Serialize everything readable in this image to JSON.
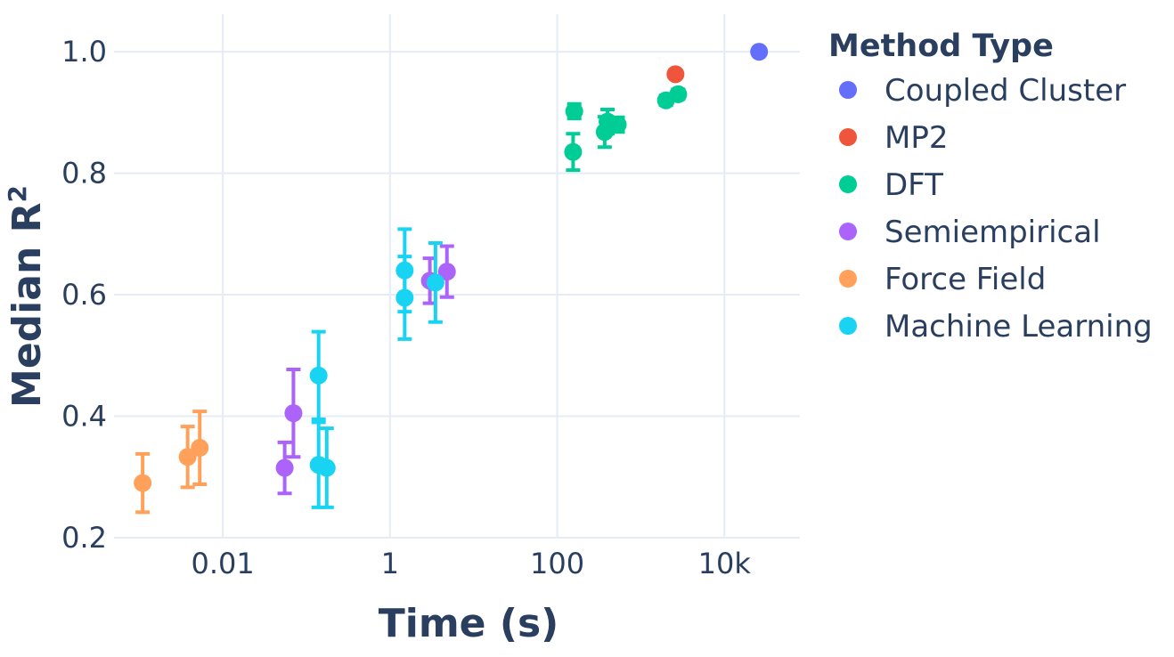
{
  "chart_data": {
    "type": "scatter",
    "xlabel": "Time (s)",
    "ylabel_main": "Median R",
    "ylabel_sup": "2",
    "x_scale": "log",
    "xlim": [
      0.0005,
      80000
    ],
    "ylim": [
      0.2,
      1.05
    ],
    "x_ticks": [
      {
        "value": 0.01,
        "label": "0.01"
      },
      {
        "value": 1,
        "label": "1"
      },
      {
        "value": 100,
        "label": "100"
      },
      {
        "value": 10000,
        "label": "10k"
      }
    ],
    "y_ticks": [
      {
        "value": 0.2,
        "label": "0.2"
      },
      {
        "value": 0.4,
        "label": "0.4"
      },
      {
        "value": 0.6,
        "label": "0.6"
      },
      {
        "value": 0.8,
        "label": "0.8"
      },
      {
        "value": 1.0,
        "label": "1.0"
      }
    ],
    "grid": true,
    "legend_title": "Method Type",
    "legend_position": "right",
    "series": [
      {
        "name": "Coupled Cluster",
        "color": "#636efa",
        "points": [
          {
            "x": 26000,
            "y": 1.0
          }
        ]
      },
      {
        "name": "MP2",
        "color": "#ef553b",
        "points": [
          {
            "x": 2600,
            "y": 0.963
          }
        ]
      },
      {
        "name": "DFT",
        "color": "#00cc96",
        "points": [
          {
            "x": 160,
            "y": 0.902,
            "err": 0.012
          },
          {
            "x": 155,
            "y": 0.835,
            "err": 0.03
          },
          {
            "x": 370,
            "y": 0.868,
            "err": 0.025
          },
          {
            "x": 400,
            "y": 0.885,
            "err": 0.02
          },
          {
            "x": 530,
            "y": 0.88,
            "err": 0.012
          },
          {
            "x": 2000,
            "y": 0.92,
            "err": 0.008
          },
          {
            "x": 2800,
            "y": 0.93,
            "err": 0.008
          }
        ]
      },
      {
        "name": "Semiempirical",
        "color": "#ab63fa",
        "points": [
          {
            "x": 0.055,
            "y": 0.315,
            "err": 0.042
          },
          {
            "x": 0.07,
            "y": 0.405,
            "err": 0.072
          },
          {
            "x": 3.0,
            "y": 0.623,
            "err": 0.037
          },
          {
            "x": 4.8,
            "y": 0.638,
            "err": 0.042
          }
        ]
      },
      {
        "name": "Force Field",
        "color": "#ffa15a",
        "points": [
          {
            "x": 0.0011,
            "y": 0.29,
            "err": 0.048
          },
          {
            "x": 0.0038,
            "y": 0.333,
            "err": 0.05
          },
          {
            "x": 0.0053,
            "y": 0.348,
            "err": 0.06
          }
        ]
      },
      {
        "name": "Machine Learning",
        "color": "#19d3f3",
        "points": [
          {
            "x": 0.14,
            "y": 0.467,
            "err": 0.072
          },
          {
            "x": 0.14,
            "y": 0.32,
            "err": 0.07
          },
          {
            "x": 0.175,
            "y": 0.315,
            "err": 0.065
          },
          {
            "x": 1.5,
            "y": 0.64,
            "err": 0.068
          },
          {
            "x": 1.5,
            "y": 0.595,
            "err": 0.068
          },
          {
            "x": 3.5,
            "y": 0.62,
            "err": 0.065
          }
        ]
      }
    ]
  }
}
